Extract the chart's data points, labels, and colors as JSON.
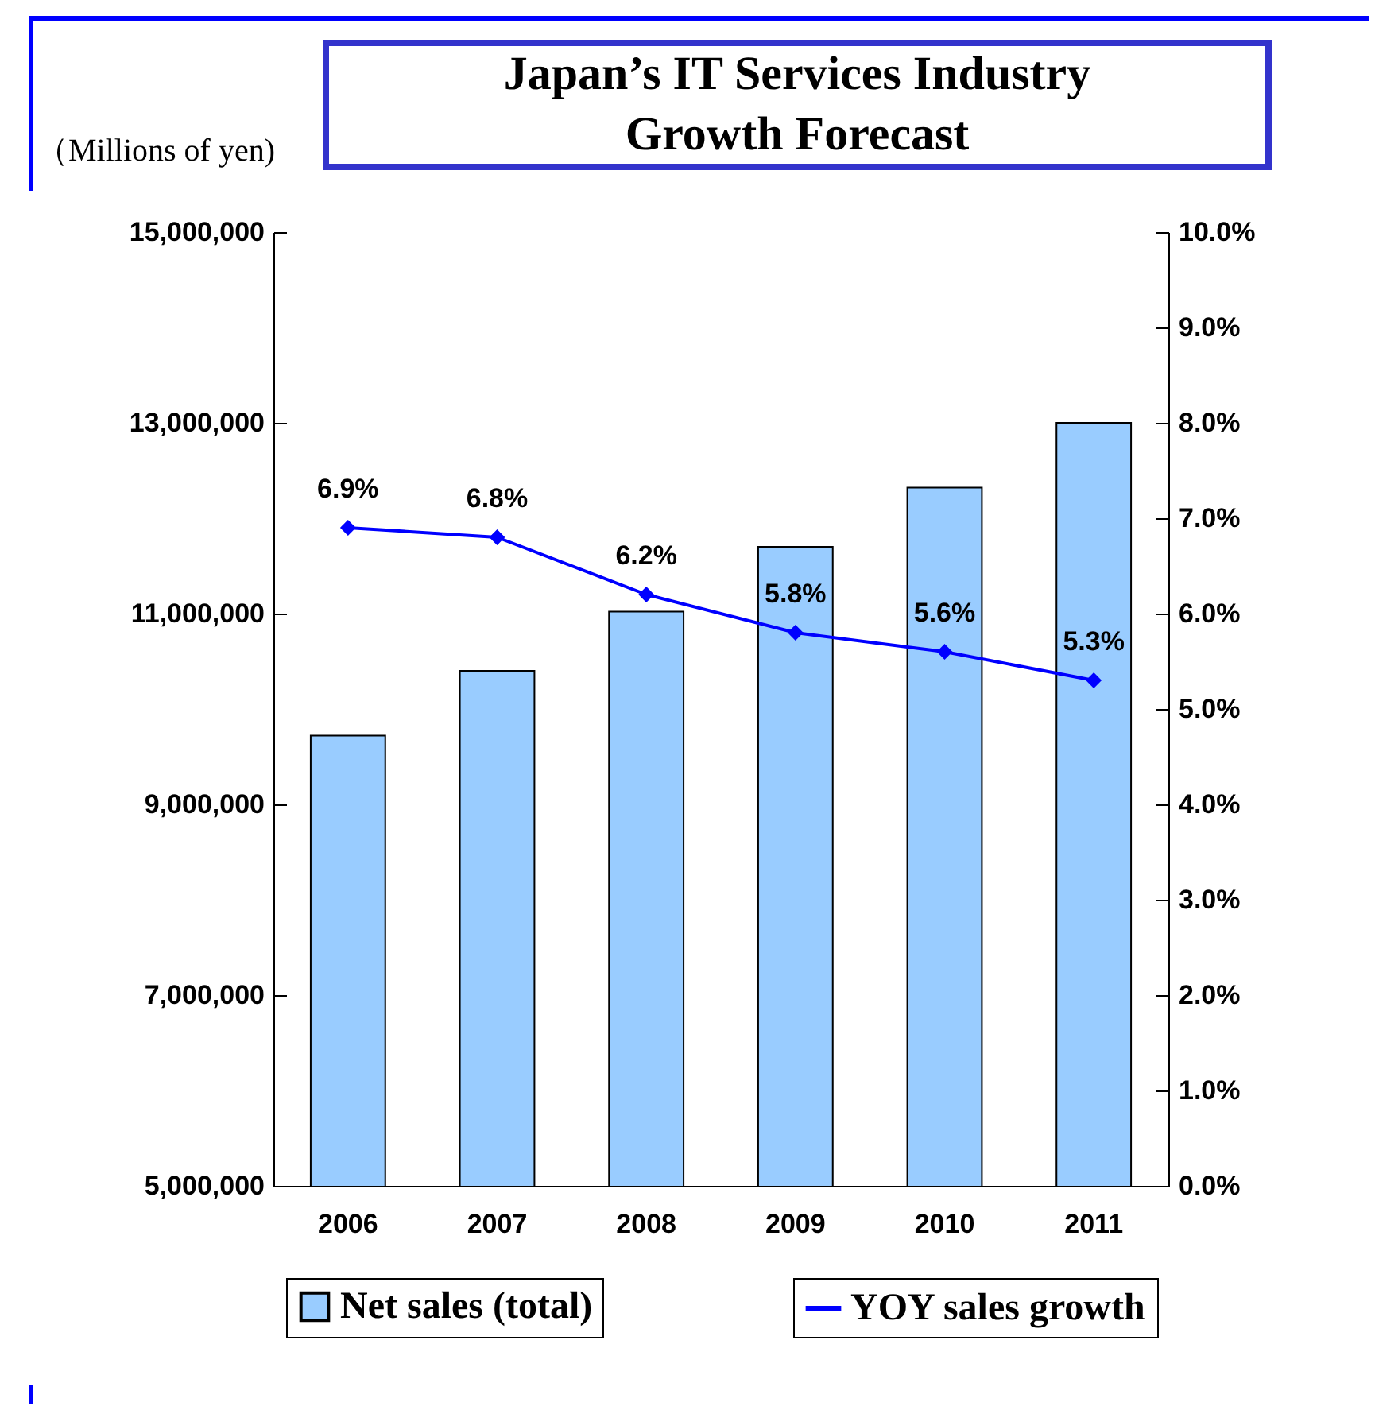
{
  "chart_data": {
    "type": "bar",
    "title": "Japan’s IT Services Industry Growth Forecast",
    "ylabel": "（Millions of yen)",
    "categories": [
      "2006",
      "2007",
      "2008",
      "2009",
      "2010",
      "2011"
    ],
    "series": [
      {
        "name": "Net sales (total)",
        "color": "#99ccff",
        "values": [
          9720000,
          10400000,
          11020000,
          11700000,
          12320000,
          13000000
        ]
      },
      {
        "name": "YOY sales growth",
        "type": "line",
        "axis": "y2",
        "color": "#0000ff",
        "values": [
          6.9,
          6.8,
          6.2,
          5.8,
          5.6,
          5.3
        ],
        "value_labels": [
          "6.9%",
          "6.8%",
          "6.2%",
          "5.8%",
          "5.6%",
          "5.3%"
        ]
      }
    ],
    "ylim": [
      5000000,
      15000000
    ],
    "yticks": [
      {
        "value": 5000000,
        "label": "5,000,000"
      },
      {
        "value": 7000000,
        "label": "7,000,000"
      },
      {
        "value": 9000000,
        "label": "9,000,000"
      },
      {
        "value": 11000000,
        "label": "11,000,000"
      },
      {
        "value": 13000000,
        "label": "13,000,000"
      },
      {
        "value": 15000000,
        "label": "15,000,000"
      }
    ],
    "y2lim": [
      0,
      10
    ],
    "y2ticks": [
      {
        "value": 0,
        "label": "0.0%"
      },
      {
        "value": 1,
        "label": "1.0%"
      },
      {
        "value": 2,
        "label": "2.0%"
      },
      {
        "value": 3,
        "label": "3.0%"
      },
      {
        "value": 4,
        "label": "4.0%"
      },
      {
        "value": 5,
        "label": "5.0%"
      },
      {
        "value": 6,
        "label": "6.0%"
      },
      {
        "value": 7,
        "label": "7.0%"
      },
      {
        "value": 8,
        "label": "8.0%"
      },
      {
        "value": 9,
        "label": "9.0%"
      },
      {
        "value": 10,
        "label": "10.0%"
      }
    ],
    "legend": "bottom",
    "marker": "diamond",
    "line_style": "solid",
    "grid": false
  }
}
